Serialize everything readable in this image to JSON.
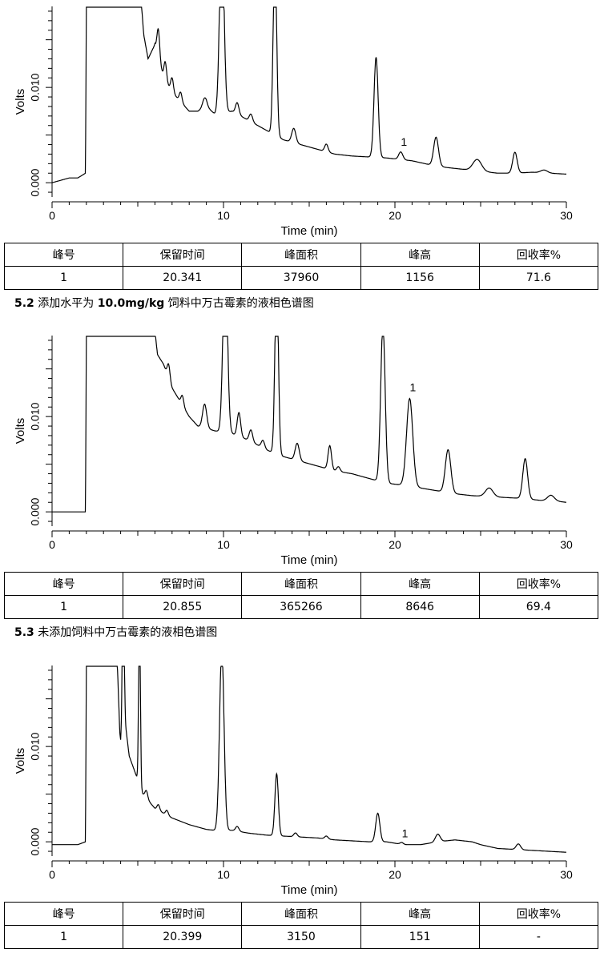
{
  "chart_data": [
    {
      "type": "line",
      "xlabel": "Time (min)",
      "ylabel": "Volts",
      "xlim": [
        0,
        30
      ],
      "ylim": [
        -0.0015,
        0.0185
      ],
      "xticks": [
        0,
        10,
        20,
        30
      ],
      "yticks": [
        0.0,
        0.01
      ],
      "ytick_labels": [
        "0.000",
        "0.010"
      ],
      "peak_annotation": {
        "label": "1",
        "x": 20.34,
        "y": 0.0032
      },
      "baseline": [
        [
          0,
          0.0
        ],
        [
          1.0,
          0.0005
        ],
        [
          1.5,
          0.0005
        ],
        [
          1.95,
          0.001
        ],
        [
          2.0,
          0.019
        ],
        [
          5.2,
          0.019
        ],
        [
          5.35,
          0.0155
        ],
        [
          5.6,
          0.013
        ],
        [
          6.0,
          0.0145
        ],
        [
          6.5,
          0.011
        ],
        [
          7.0,
          0.0095
        ],
        [
          7.5,
          0.0085
        ],
        [
          8.0,
          0.0075
        ],
        [
          8.5,
          0.0075
        ],
        [
          9.0,
          0.008
        ],
        [
          9.5,
          0.0072
        ],
        [
          10.5,
          0.0075
        ],
        [
          11.5,
          0.0065
        ],
        [
          12.5,
          0.0055
        ],
        [
          13.5,
          0.0045
        ],
        [
          14.5,
          0.004
        ],
        [
          15.5,
          0.0035
        ],
        [
          16.5,
          0.003
        ],
        [
          17.5,
          0.0028
        ],
        [
          18.5,
          0.0027
        ],
        [
          19.5,
          0.0026
        ],
        [
          21,
          0.0023
        ],
        [
          22,
          0.0019
        ],
        [
          23,
          0.0016
        ],
        [
          24,
          0.0014
        ],
        [
          25,
          0.0012
        ],
        [
          26,
          0.001
        ],
        [
          27,
          0.001
        ],
        [
          28,
          0.0011
        ],
        [
          29,
          0.001
        ],
        [
          30,
          0.0009
        ]
      ],
      "peaks": [
        [
          9.9,
          0.019,
          0.13
        ],
        [
          13.0,
          0.019,
          0.1
        ],
        [
          6.2,
          0.003,
          0.08
        ],
        [
          6.6,
          0.002,
          0.08
        ],
        [
          7.0,
          0.0015,
          0.08
        ],
        [
          7.5,
          0.001,
          0.08
        ],
        [
          8.9,
          0.001,
          0.12
        ],
        [
          10.8,
          0.0012,
          0.1
        ],
        [
          11.6,
          0.0008,
          0.1
        ],
        [
          14.1,
          0.0015,
          0.12
        ],
        [
          16.0,
          0.0008,
          0.1
        ],
        [
          18.9,
          0.0105,
          0.12
        ],
        [
          20.34,
          0.0008,
          0.12
        ],
        [
          22.4,
          0.003,
          0.14
        ],
        [
          24.8,
          0.0012,
          0.25
        ],
        [
          27.0,
          0.0022,
          0.13
        ],
        [
          28.7,
          0.0003,
          0.2
        ]
      ]
    },
    {
      "type": "line",
      "xlabel": "Time (min)",
      "ylabel": "Volts",
      "xlim": [
        0,
        30
      ],
      "ylim": [
        -0.0015,
        0.0185
      ],
      "xticks": [
        0,
        10,
        20,
        30
      ],
      "yticks": [
        0.0,
        0.01
      ],
      "ytick_labels": [
        "0.000",
        "0.010"
      ],
      "peak_annotation": {
        "label": "1",
        "x": 20.86,
        "y": 0.012
      },
      "baseline": [
        [
          0,
          0.0
        ],
        [
          1.95,
          0.0
        ],
        [
          2.0,
          0.019
        ],
        [
          6.0,
          0.019
        ],
        [
          6.15,
          0.0165
        ],
        [
          6.5,
          0.0155
        ],
        [
          7.0,
          0.013
        ],
        [
          7.5,
          0.0115
        ],
        [
          8.0,
          0.01
        ],
        [
          8.5,
          0.009
        ],
        [
          9.5,
          0.0085
        ],
        [
          10.5,
          0.0082
        ],
        [
          11.5,
          0.0075
        ],
        [
          12.5,
          0.0065
        ],
        [
          13.5,
          0.0058
        ],
        [
          14.5,
          0.0053
        ],
        [
          15.5,
          0.0048
        ],
        [
          16.5,
          0.0043
        ],
        [
          17.5,
          0.004
        ],
        [
          18.5,
          0.0035
        ],
        [
          19.5,
          0.003
        ],
        [
          20.5,
          0.0028
        ],
        [
          21.5,
          0.0025
        ],
        [
          22.5,
          0.0022
        ],
        [
          23.5,
          0.0019
        ],
        [
          24.5,
          0.0017
        ],
        [
          25.5,
          0.0016
        ],
        [
          26.5,
          0.0015
        ],
        [
          27.5,
          0.0014
        ],
        [
          28.5,
          0.0012
        ],
        [
          29.5,
          0.0011
        ],
        [
          30,
          0.001
        ]
      ],
      "peaks": [
        [
          10.1,
          0.019,
          0.13
        ],
        [
          13.1,
          0.019,
          0.1
        ],
        [
          6.8,
          0.0015,
          0.08
        ],
        [
          7.6,
          0.001,
          0.08
        ],
        [
          8.9,
          0.0025,
          0.12
        ],
        [
          10.9,
          0.0025,
          0.1
        ],
        [
          11.6,
          0.0012,
          0.1
        ],
        [
          12.3,
          0.0008,
          0.1
        ],
        [
          14.3,
          0.0018,
          0.12
        ],
        [
          16.2,
          0.0025,
          0.1
        ],
        [
          16.7,
          0.0005,
          0.1
        ],
        [
          19.3,
          0.0165,
          0.13
        ],
        [
          20.86,
          0.0092,
          0.18
        ],
        [
          23.1,
          0.0045,
          0.16
        ],
        [
          25.5,
          0.0009,
          0.22
        ],
        [
          27.6,
          0.0042,
          0.14
        ],
        [
          29.1,
          0.0006,
          0.2
        ]
      ]
    },
    {
      "type": "line",
      "xlabel": "Time (min)",
      "ylabel": "Volts",
      "xlim": [
        0,
        30
      ],
      "ylim": [
        -0.0015,
        0.0185
      ],
      "xticks": [
        0,
        10,
        20,
        30
      ],
      "yticks": [
        0.0,
        0.01
      ],
      "ytick_labels": [
        "0.000",
        "0.010"
      ],
      "peak_annotation": {
        "label": "1",
        "x": 20.4,
        "y": -0.0002
      },
      "baseline": [
        [
          0,
          -0.0003
        ],
        [
          1.5,
          -0.0003
        ],
        [
          1.95,
          0.0
        ],
        [
          2.0,
          0.019
        ],
        [
          3.8,
          0.019
        ],
        [
          3.95,
          0.0115
        ],
        [
          4.0,
          0.0105
        ],
        [
          4.2,
          0.0135
        ],
        [
          4.5,
          0.009
        ],
        [
          4.8,
          0.0075
        ],
        [
          5.0,
          0.0065
        ],
        [
          5.3,
          0.005
        ],
        [
          6,
          0.0035
        ],
        [
          7,
          0.0025
        ],
        [
          8,
          0.0018
        ],
        [
          9,
          0.0013
        ],
        [
          9.5,
          0.0012
        ],
        [
          10.5,
          0.0012
        ],
        [
          11.5,
          0.0009
        ],
        [
          12.5,
          0.0007
        ],
        [
          13.5,
          0.0006
        ],
        [
          14.5,
          0.0005
        ],
        [
          15.5,
          0.0004
        ],
        [
          16.5,
          0.0002
        ],
        [
          17.5,
          0.0001
        ],
        [
          18.5,
          0.0
        ],
        [
          19.5,
          0.0
        ],
        [
          20.5,
          -0.0003
        ],
        [
          21.5,
          -0.0003
        ],
        [
          22.5,
          0.0
        ],
        [
          23.5,
          0.0002
        ],
        [
          24.5,
          0.0
        ],
        [
          25,
          -0.0003
        ],
        [
          26,
          -0.0007
        ],
        [
          27,
          -0.0008
        ],
        [
          28,
          -0.0009
        ],
        [
          29,
          -0.001
        ],
        [
          30,
          -0.0011
        ]
      ],
      "peaks": [
        [
          4.15,
          0.019,
          0.05
        ],
        [
          5.1,
          0.019,
          0.05
        ],
        [
          9.9,
          0.019,
          0.13
        ],
        [
          13.1,
          0.0065,
          0.1
        ],
        [
          5.5,
          0.0008,
          0.08
        ],
        [
          6.2,
          0.0006,
          0.08
        ],
        [
          6.7,
          0.0005,
          0.08
        ],
        [
          10.8,
          0.0005,
          0.1
        ],
        [
          14.2,
          0.0004,
          0.1
        ],
        [
          16.0,
          0.0003,
          0.1
        ],
        [
          19.0,
          0.003,
          0.12
        ],
        [
          20.4,
          0.0002,
          0.1
        ],
        [
          22.5,
          0.0008,
          0.14
        ],
        [
          27.2,
          0.0006,
          0.13
        ]
      ]
    }
  ],
  "tables": [
    {
      "headers": [
        "峰号",
        "保留时间",
        "峰面积",
        "峰高",
        "回收率%"
      ],
      "row": [
        "1",
        "20.341",
        "37960",
        "1156",
        "71.6"
      ]
    },
    {
      "headers": [
        "峰号",
        "保留时间",
        "峰面积",
        "峰高",
        "回收率%"
      ],
      "row": [
        "1",
        "20.855",
        "365266",
        "8646",
        "69.4"
      ]
    },
    {
      "headers": [
        "峰号",
        "保留时间",
        "峰面积",
        "峰高",
        "回收率%"
      ],
      "row": [
        "1",
        "20.399",
        "3150",
        "151",
        "-"
      ]
    }
  ],
  "captions": {
    "c52": {
      "number": "5.2",
      "pre": "添加水平为",
      "bold_value": "10.0mg/kg",
      "post": "饲料中万古霉素的液相色谱图"
    },
    "c53": {
      "number": "5.3",
      "text": "未添加饲料中万古霉素的液相色谱图"
    }
  }
}
